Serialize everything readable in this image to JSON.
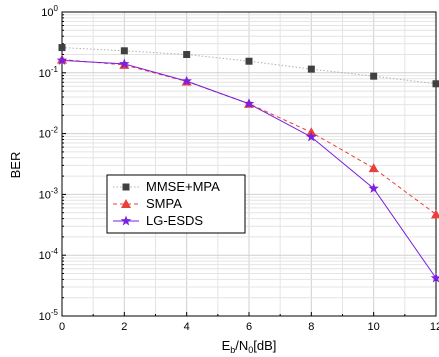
{
  "chart_data": {
    "type": "line",
    "title": "",
    "xlabel": {
      "base": "E",
      "sub1": "b",
      "mid": "/N",
      "sub2": "0",
      "unit": "[dB]"
    },
    "ylabel": "BER",
    "xlim": [
      0,
      12
    ],
    "ylim": [
      1e-05,
      1
    ],
    "yscale": "log",
    "grid": true,
    "x_ticks": [
      0,
      2,
      4,
      6,
      8,
      10,
      12
    ],
    "x_tick_labels": [
      "0",
      "2",
      "4",
      "6",
      "8",
      "10",
      "12"
    ],
    "y_ticks": [
      {
        "value": 1,
        "base": "10",
        "exp": "0"
      },
      {
        "value": 0.1,
        "base": "10",
        "exp": "-1"
      },
      {
        "value": 0.01,
        "base": "10",
        "exp": "-2"
      },
      {
        "value": 0.001,
        "base": "10",
        "exp": "-3"
      },
      {
        "value": 0.0001,
        "base": "10",
        "exp": "-4"
      },
      {
        "value": 1e-05,
        "base": "10",
        "exp": "-5"
      }
    ],
    "legend_position": "lower-left",
    "series": [
      {
        "name": "MMSE+MPA",
        "marker": "square",
        "line": "dotted",
        "color": "#404040",
        "line_color": "#b0b0b0",
        "x": [
          0,
          2,
          4,
          6,
          8,
          10,
          12
        ],
        "y": [
          0.26,
          0.23,
          0.2,
          0.155,
          0.115,
          0.088,
          0.066
        ]
      },
      {
        "name": "SMPA",
        "marker": "triangle",
        "line": "dashed",
        "color": "#e8413a",
        "line_color": "#e8413a",
        "x": [
          0,
          2,
          4,
          6,
          8,
          10,
          12
        ],
        "y": [
          0.165,
          0.135,
          0.072,
          0.031,
          0.0105,
          0.0027,
          0.00047
        ]
      },
      {
        "name": "LG-ESDS",
        "marker": "star",
        "line": "solid",
        "color": "#7b1fe0",
        "line_color": "#7b1fe0",
        "x": [
          0,
          2,
          4,
          6,
          8,
          10,
          12
        ],
        "y": [
          0.16,
          0.14,
          0.073,
          0.031,
          0.0088,
          0.00125,
          4.2e-05
        ]
      }
    ]
  }
}
